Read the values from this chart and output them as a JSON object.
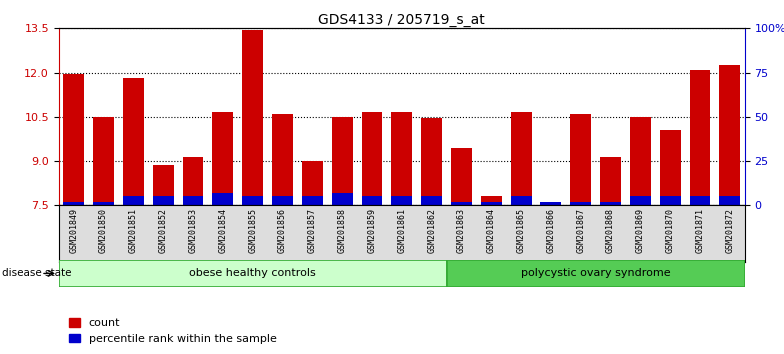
{
  "title": "GDS4133 / 205719_s_at",
  "samples": [
    "GSM201849",
    "GSM201850",
    "GSM201851",
    "GSM201852",
    "GSM201853",
    "GSM201854",
    "GSM201855",
    "GSM201856",
    "GSM201857",
    "GSM201858",
    "GSM201859",
    "GSM201861",
    "GSM201862",
    "GSM201863",
    "GSM201864",
    "GSM201865",
    "GSM201866",
    "GSM201867",
    "GSM201868",
    "GSM201869",
    "GSM201870",
    "GSM201871",
    "GSM201872"
  ],
  "counts": [
    11.95,
    10.5,
    11.8,
    8.85,
    9.15,
    10.65,
    13.45,
    10.6,
    9.0,
    10.5,
    10.65,
    10.65,
    10.45,
    9.45,
    7.8,
    10.65,
    7.5,
    10.6,
    9.15,
    10.5,
    10.05,
    12.1,
    12.25
  ],
  "percentiles": [
    2,
    2,
    5,
    5,
    5,
    7,
    5,
    5,
    5,
    7,
    5,
    5,
    5,
    2,
    2,
    5,
    2,
    2,
    2,
    5,
    5,
    5,
    5
  ],
  "bar_bottom": 7.5,
  "ylim_left": [
    7.5,
    13.5
  ],
  "ylim_right": [
    0,
    100
  ],
  "yticks_left": [
    7.5,
    9.0,
    10.5,
    12.0,
    13.5
  ],
  "yticks_right": [
    0,
    25,
    50,
    75,
    100
  ],
  "ytick_labels_right": [
    "0",
    "25",
    "50",
    "75",
    "100%"
  ],
  "bar_color": "#cc0000",
  "percentile_color": "#0000cc",
  "group1_label": "obese healthy controls",
  "group2_label": "polycystic ovary syndrome",
  "group1_count": 13,
  "group2_count": 10,
  "group_bg1": "#ccffcc",
  "group_bg2": "#55cc55",
  "legend_count_label": "count",
  "legend_pct_label": "percentile rank within the sample",
  "disease_state_label": "disease state",
  "left_axis_color": "#cc0000",
  "right_axis_color": "#0000cc",
  "xtick_bg": "#dddddd",
  "background_color": "#ffffff"
}
